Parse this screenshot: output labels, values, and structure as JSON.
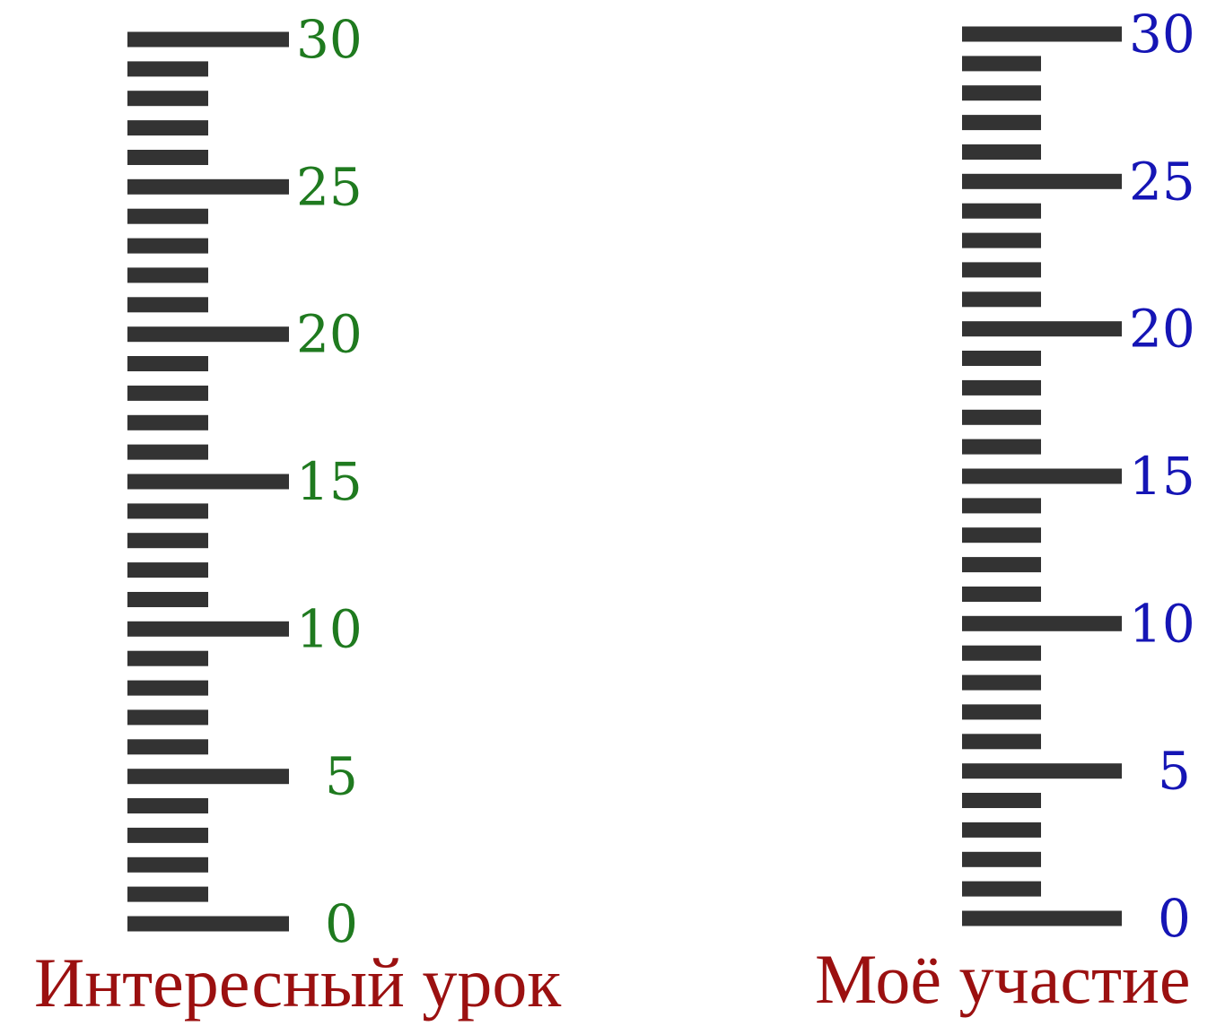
{
  "scales": [
    {
      "caption": "Интересный урок",
      "min": 0,
      "max": 30,
      "major_step": 5,
      "labels": [
        "0",
        "5",
        "10",
        "15",
        "20",
        "25",
        "30"
      ],
      "label_color": "#1f7a1f",
      "caption_color": "#9b1010"
    },
    {
      "caption": "Моё участие",
      "min": 0,
      "max": 30,
      "major_step": 5,
      "labels": [
        "0",
        "5",
        "10",
        "15",
        "20",
        "25",
        "30"
      ],
      "label_color": "#1515b5",
      "caption_color": "#9b1010"
    }
  ],
  "tick_color": "#333333"
}
